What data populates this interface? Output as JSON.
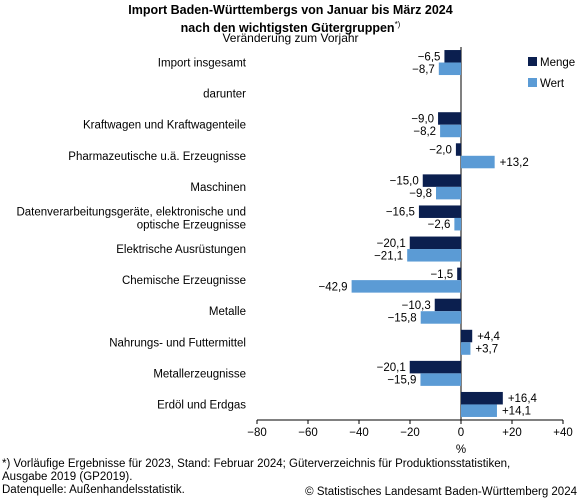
{
  "chart_data": {
    "type": "bar",
    "orientation": "horizontal",
    "title_line1": "Import Baden-Württembergs von Januar bis März 2024",
    "title_line2": "nach den wichtigsten Gütergruppen",
    "title_mark": "*)",
    "subtitle": "Veränderung zum Vorjahr",
    "xlabel": "%",
    "xlim": [
      -80,
      40
    ],
    "xticks": [
      -80,
      -60,
      -40,
      -20,
      0,
      20,
      40
    ],
    "xtick_labels": [
      "−80",
      "−60",
      "−40",
      "−20",
      "0",
      "+20",
      "+40"
    ],
    "legend_position": "top-right",
    "categories": [
      [
        "Import insgesamt"
      ],
      [
        "darunter"
      ],
      [
        "Kraftwagen und Kraftwagenteile"
      ],
      [
        "Pharmazeutische u.ä. Erzeugnisse"
      ],
      [
        "Maschinen"
      ],
      [
        "Datenverarbeitungsgeräte, elektronische und",
        "optische Erzeugnisse"
      ],
      [
        "Elektrische Ausrüstungen"
      ],
      [
        "Chemische Erzeugnisse"
      ],
      [
        "Metalle"
      ],
      [
        "Nahrungs- und Futtermittel"
      ],
      [
        "Metallerzeugnisse"
      ],
      [
        "Erdöl und Erdgas"
      ]
    ],
    "series": [
      {
        "name": "Menge",
        "color": "#0b1f4f",
        "values": [
          -6.5,
          null,
          -9.0,
          -2.0,
          -15.0,
          -16.5,
          -20.1,
          -1.5,
          -10.3,
          4.4,
          -20.1,
          16.4
        ],
        "labels": [
          "−6,5",
          "",
          "−9,0",
          "−2,0",
          "−15,0",
          "−16,5",
          "−20,1",
          "−1,5",
          "−10,3",
          "+4,4",
          "−20,1",
          "+16,4"
        ]
      },
      {
        "name": "Wert",
        "color": "#5b9bd5",
        "values": [
          -8.7,
          null,
          -8.2,
          13.2,
          -9.8,
          -2.6,
          -21.1,
          -42.9,
          -15.8,
          3.7,
          -15.9,
          14.1
        ],
        "labels": [
          "−8,7",
          "",
          "−8,2",
          "+13,2",
          "−9,8",
          "−2,6",
          "−21,1",
          "−42,9",
          "−15,8",
          "+3,7",
          "−15,9",
          "+14,1"
        ]
      }
    ]
  },
  "footnote_1": "*) Vorläufige Ergebnisse für 2023, Stand: Februar 2024; Güterverzeichnis für Produktionsstatistiken,",
  "footnote_2": "Ausgabe 2019 (GP2019).",
  "footnote_3": "Datenquelle: Außenhandelsstatistik.",
  "copyright": "© Statistisches Landesamt Baden-Württemberg 2024"
}
